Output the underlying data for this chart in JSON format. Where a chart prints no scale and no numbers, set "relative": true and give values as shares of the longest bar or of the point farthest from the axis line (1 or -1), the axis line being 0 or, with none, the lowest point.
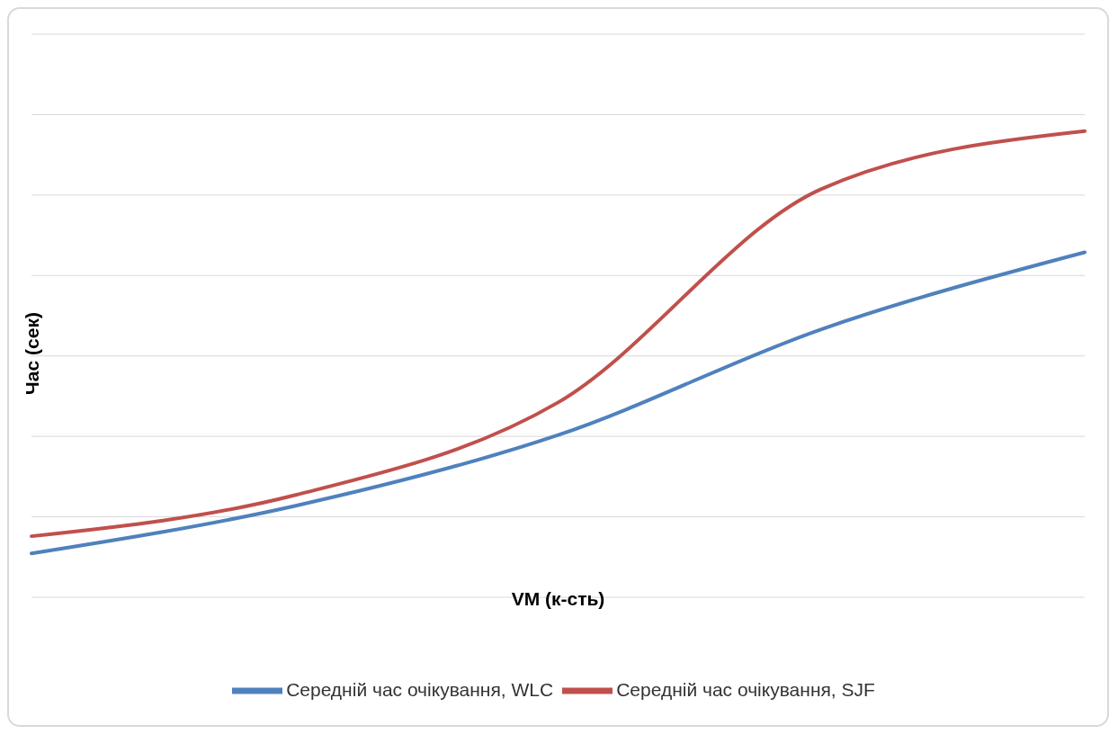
{
  "chart_data": {
    "type": "line",
    "relative": true,
    "xlabel": "VM (к-сть)",
    "ylabel": "Час (сек)",
    "categories": [
      null,
      null,
      null,
      null,
      null
    ],
    "series": [
      {
        "name": "Середній час очікування, WLC",
        "color": "#4f81bd",
        "values": [
          0.094,
          0.196,
          0.348,
          0.575,
          0.74
        ]
      },
      {
        "name": "Середній час очікування, SJF",
        "color": "#c0504d",
        "values": [
          0.131,
          0.219,
          0.418,
          0.876,
          1
        ]
      }
    ],
    "grid": "y",
    "legend": "bottom",
    "marker": "none",
    "line_style": "solid"
  }
}
